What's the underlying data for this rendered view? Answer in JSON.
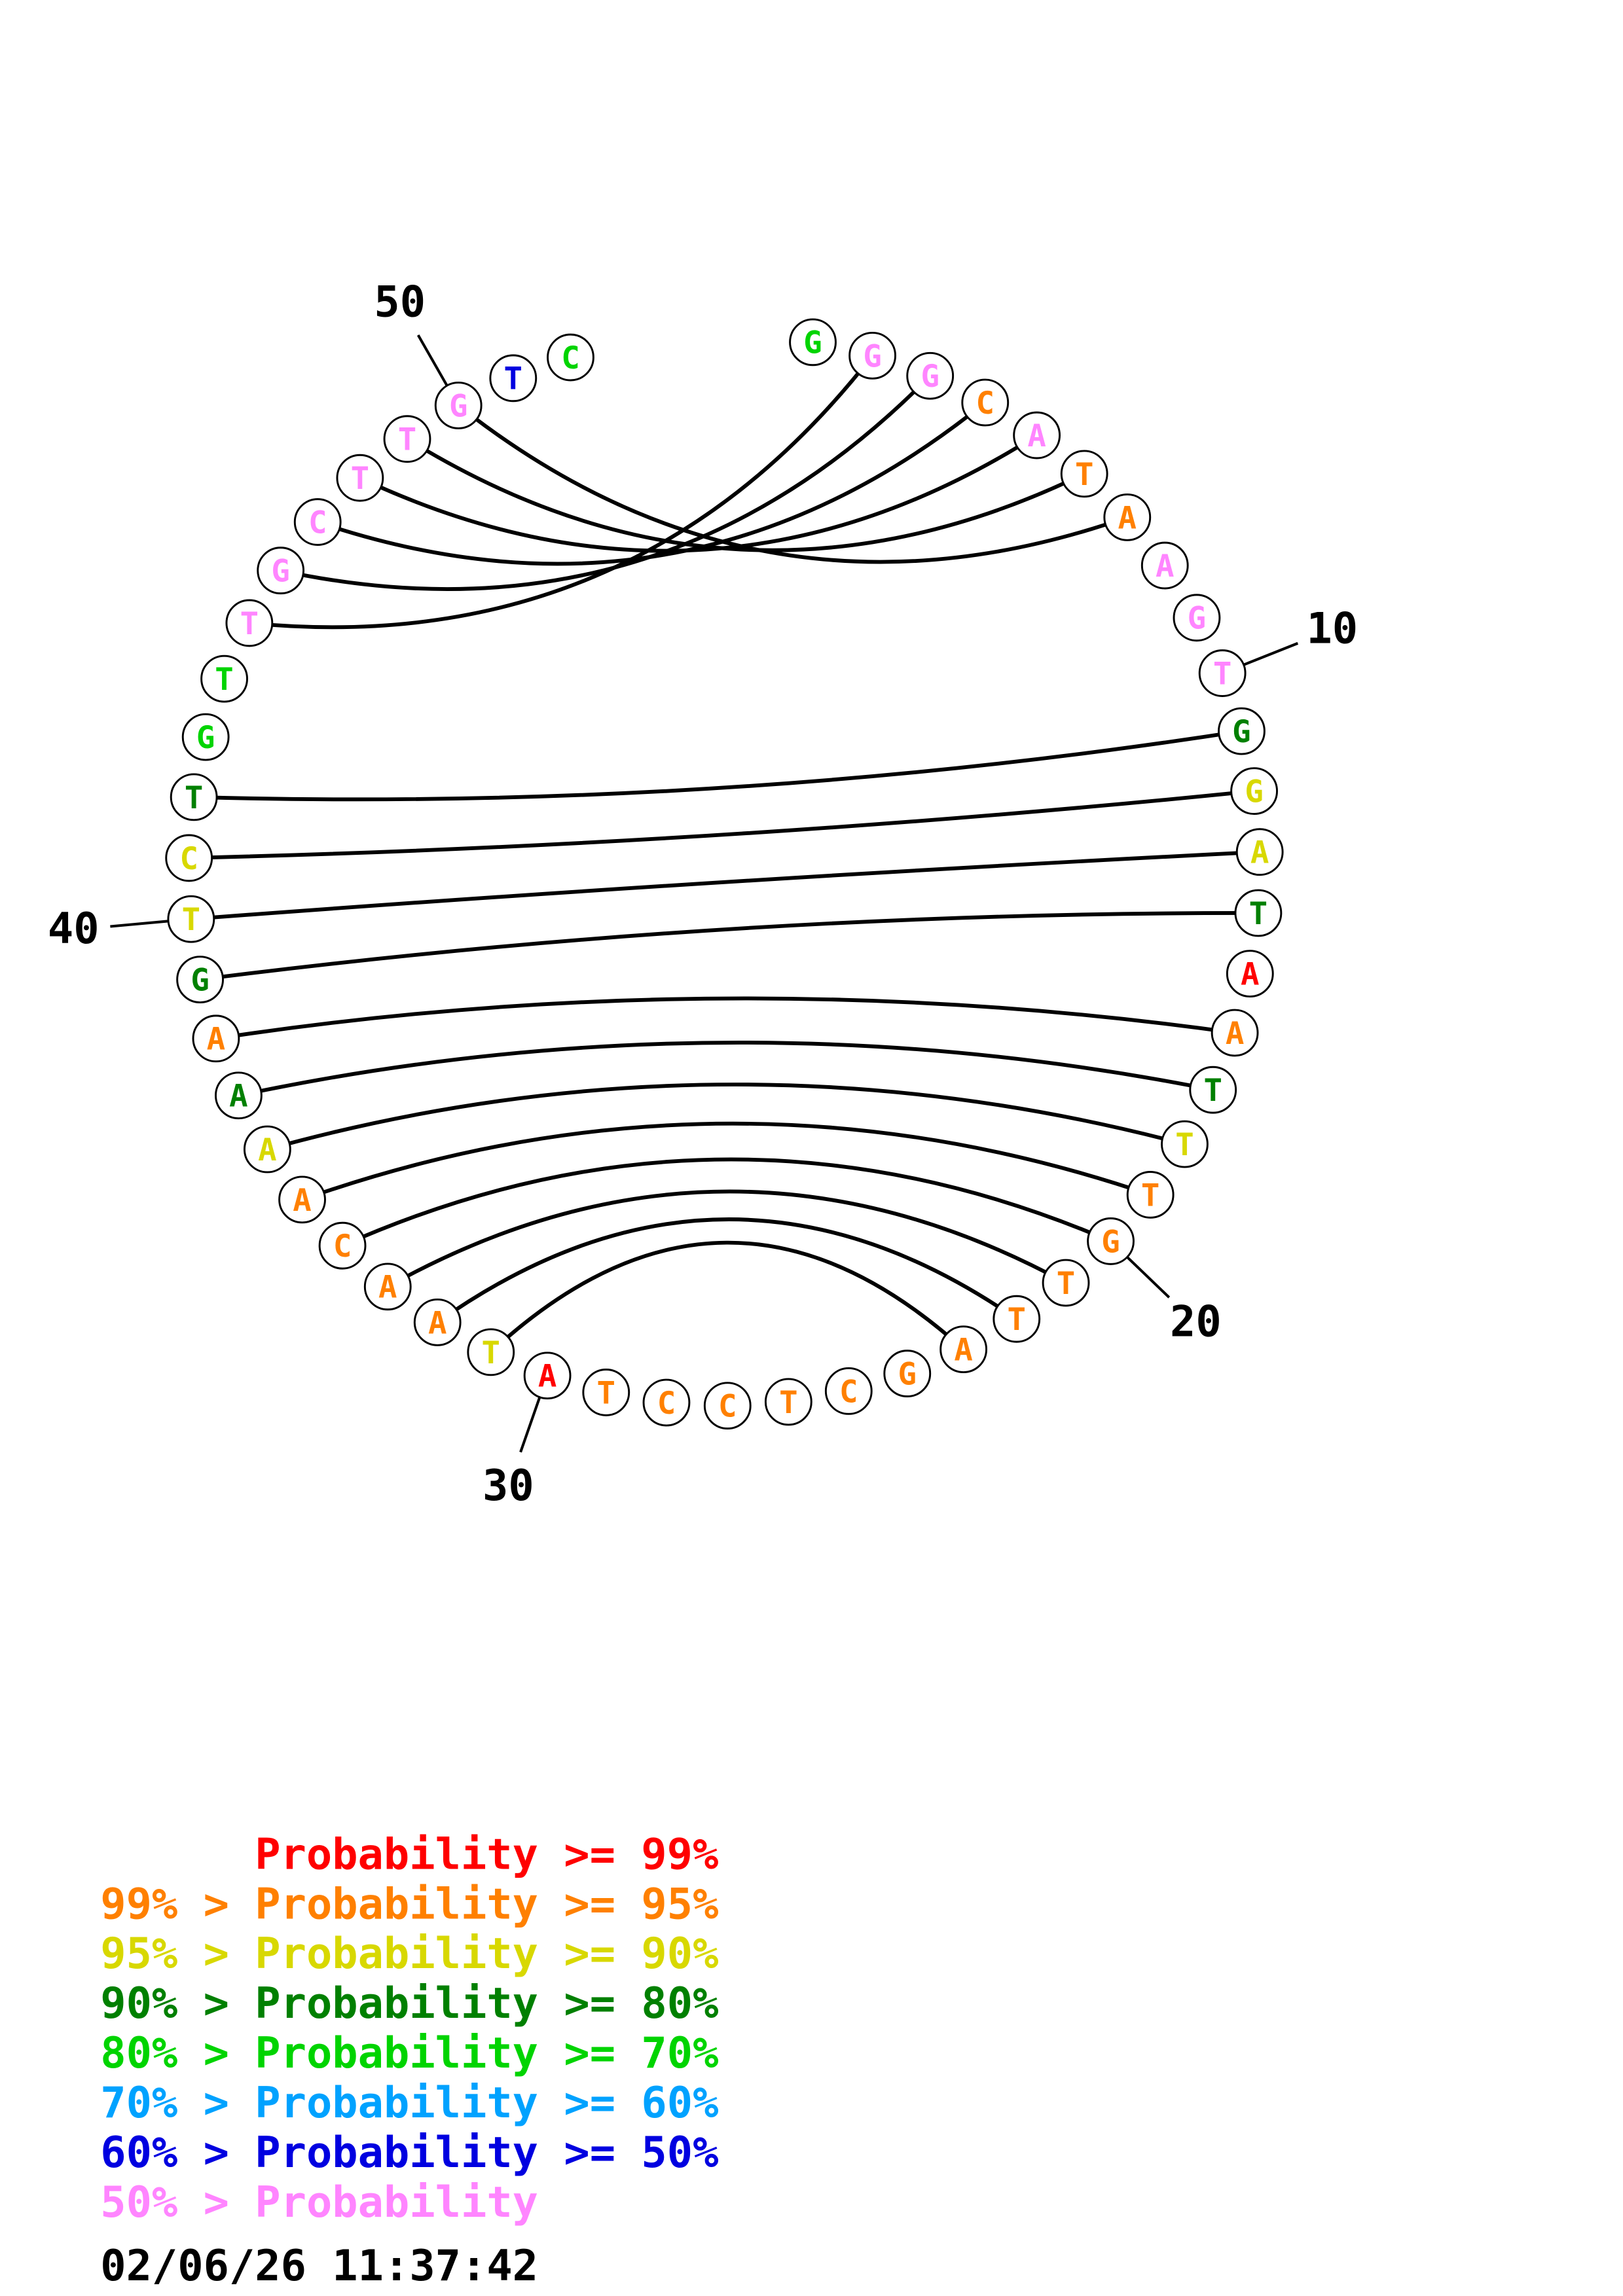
{
  "chart_data": {
    "type": "rna-circle-probability-plot",
    "description": "Circular base-pair probability plot: 52 nucleotides on a circle, black chords join paired bases, letter color encodes pair probability",
    "sequence_length": 52,
    "sequence": "GGGCATAAGTGGATAATTTGTTAGCTCCTATAACAAAAGTCTGTTGCTTGTC",
    "bases": [
      {
        "p": 1,
        "b": "G",
        "c": "p70_80"
      },
      {
        "p": 2,
        "b": "G",
        "c": "p_lt_50"
      },
      {
        "p": 3,
        "b": "G",
        "c": "p_lt_50"
      },
      {
        "p": 4,
        "b": "C",
        "c": "p95_99"
      },
      {
        "p": 5,
        "b": "A",
        "c": "p_lt_50"
      },
      {
        "p": 6,
        "b": "T",
        "c": "p95_99"
      },
      {
        "p": 7,
        "b": "A",
        "c": "p95_99"
      },
      {
        "p": 8,
        "b": "A",
        "c": "p_lt_50"
      },
      {
        "p": 9,
        "b": "G",
        "c": "p_lt_50"
      },
      {
        "p": 10,
        "b": "T",
        "c": "p_lt_50"
      },
      {
        "p": 11,
        "b": "G",
        "c": "p80_90"
      },
      {
        "p": 12,
        "b": "G",
        "c": "p90_95"
      },
      {
        "p": 13,
        "b": "A",
        "c": "p90_95"
      },
      {
        "p": 14,
        "b": "T",
        "c": "p80_90"
      },
      {
        "p": 15,
        "b": "A",
        "c": "p99"
      },
      {
        "p": 16,
        "b": "A",
        "c": "p95_99"
      },
      {
        "p": 17,
        "b": "T",
        "c": "p80_90"
      },
      {
        "p": 18,
        "b": "T",
        "c": "p90_95"
      },
      {
        "p": 19,
        "b": "T",
        "c": "p95_99"
      },
      {
        "p": 20,
        "b": "G",
        "c": "p95_99"
      },
      {
        "p": 21,
        "b": "T",
        "c": "p95_99"
      },
      {
        "p": 22,
        "b": "T",
        "c": "p95_99"
      },
      {
        "p": 23,
        "b": "A",
        "c": "p95_99"
      },
      {
        "p": 24,
        "b": "G",
        "c": "p95_99"
      },
      {
        "p": 25,
        "b": "C",
        "c": "p95_99"
      },
      {
        "p": 26,
        "b": "T",
        "c": "p95_99"
      },
      {
        "p": 27,
        "b": "C",
        "c": "p95_99"
      },
      {
        "p": 28,
        "b": "C",
        "c": "p95_99"
      },
      {
        "p": 29,
        "b": "T",
        "c": "p95_99"
      },
      {
        "p": 30,
        "b": "A",
        "c": "p99"
      },
      {
        "p": 31,
        "b": "T",
        "c": "p90_95"
      },
      {
        "p": 32,
        "b": "A",
        "c": "p95_99"
      },
      {
        "p": 33,
        "b": "A",
        "c": "p95_99"
      },
      {
        "p": 34,
        "b": "C",
        "c": "p95_99"
      },
      {
        "p": 35,
        "b": "A",
        "c": "p95_99"
      },
      {
        "p": 36,
        "b": "A",
        "c": "p90_95"
      },
      {
        "p": 37,
        "b": "A",
        "c": "p80_90"
      },
      {
        "p": 38,
        "b": "A",
        "c": "p95_99"
      },
      {
        "p": 39,
        "b": "G",
        "c": "p80_90"
      },
      {
        "p": 40,
        "b": "T",
        "c": "p90_95"
      },
      {
        "p": 41,
        "b": "C",
        "c": "p90_95"
      },
      {
        "p": 42,
        "b": "T",
        "c": "p80_90"
      },
      {
        "p": 43,
        "b": "G",
        "c": "p70_80"
      },
      {
        "p": 44,
        "b": "T",
        "c": "p70_80"
      },
      {
        "p": 45,
        "b": "T",
        "c": "p_lt_50"
      },
      {
        "p": 46,
        "b": "G",
        "c": "p_lt_50"
      },
      {
        "p": 47,
        "b": "C",
        "c": "p_lt_50"
      },
      {
        "p": 48,
        "b": "T",
        "c": "p_lt_50"
      },
      {
        "p": 49,
        "b": "T",
        "c": "p_lt_50"
      },
      {
        "p": 50,
        "b": "G",
        "c": "p_lt_50"
      },
      {
        "p": 51,
        "b": "T",
        "c": "p50_60"
      },
      {
        "p": 52,
        "b": "C",
        "c": "p70_80"
      }
    ],
    "pairs": [
      {
        "i": 2,
        "j": 45
      },
      {
        "i": 3,
        "j": 46
      },
      {
        "i": 4,
        "j": 47
      },
      {
        "i": 5,
        "j": 48
      },
      {
        "i": 6,
        "j": 49
      },
      {
        "i": 7,
        "j": 50
      },
      {
        "i": 11,
        "j": 42
      },
      {
        "i": 12,
        "j": 41
      },
      {
        "i": 13,
        "j": 40
      },
      {
        "i": 14,
        "j": 39
      },
      {
        "i": 16,
        "j": 38
      },
      {
        "i": 17,
        "j": 37
      },
      {
        "i": 18,
        "j": 36
      },
      {
        "i": 19,
        "j": 35
      },
      {
        "i": 20,
        "j": 34
      },
      {
        "i": 21,
        "j": 33
      },
      {
        "i": 22,
        "j": 32
      },
      {
        "i": 23,
        "j": 31
      }
    ],
    "position_labels": [
      10,
      20,
      30,
      40,
      50
    ]
  },
  "palette": {
    "p99": "#ff0000",
    "p95_99": "#ff8000",
    "p90_95": "#d8d800",
    "p80_90": "#008000",
    "p70_80": "#00d400",
    "p60_70": "#00a2ff",
    "p50_60": "#0000e0",
    "p_lt_50": "#ff85ff"
  },
  "legend": {
    "items": [
      {
        "text": "Probability >= 99%",
        "indent_chars": 6,
        "color": "#ff0000"
      },
      {
        "text": "99% > Probability >= 95%",
        "indent_chars": 0,
        "color": "#ff8000"
      },
      {
        "text": "95% > Probability >= 90%",
        "indent_chars": 0,
        "color": "#d8d800"
      },
      {
        "text": "90% > Probability >= 80%",
        "indent_chars": 0,
        "color": "#008000"
      },
      {
        "text": "80% > Probability >= 70%",
        "indent_chars": 0,
        "color": "#00d400"
      },
      {
        "text": "70% > Probability >= 60%",
        "indent_chars": 0,
        "color": "#00a2ff"
      },
      {
        "text": "60% > Probability >= 50%",
        "indent_chars": 0,
        "color": "#0000e0"
      },
      {
        "text": "50% > Probability",
        "indent_chars": 0,
        "color": "#ff85ff"
      }
    ]
  },
  "timestamp": "02/06/26 11:37:42"
}
